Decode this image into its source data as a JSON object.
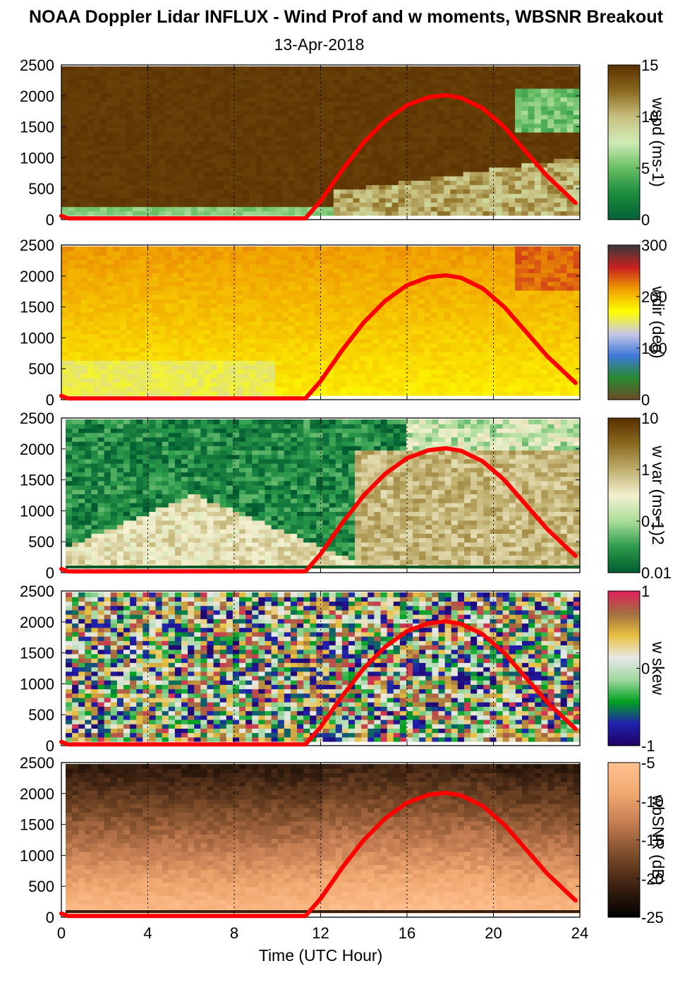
{
  "title": "NOAA Doppler Lidar INFLUX - Wind Prof and w moments, WBSNR Breakout",
  "date": "13-Apr-2018",
  "chart_data": {
    "type": "heatmap",
    "xlabel": "Time (UTC Hour)",
    "x_ticks": [
      "0",
      "4",
      "8",
      "12",
      "16",
      "20",
      "24"
    ],
    "xlim": [
      0,
      24
    ],
    "ylim": [
      0,
      2500
    ],
    "y_ticks": [
      "0",
      "500",
      "1000",
      "1500",
      "2000",
      "2500"
    ],
    "grid": "vertical dotted lines at 4, 8, 12, 16, 20",
    "overlay": {
      "name": "solar curve",
      "color": "#ff0000",
      "x": [
        0,
        0.3,
        11.3,
        12,
        13,
        14,
        15,
        16,
        17,
        17.8,
        18.5,
        19.5,
        20.5,
        21.5,
        22.5,
        23.8
      ],
      "y": [
        60,
        20,
        20,
        300,
        800,
        1250,
        1600,
        1850,
        1980,
        2010,
        1970,
        1800,
        1500,
        1100,
        700,
        270
      ]
    },
    "panels": [
      {
        "id": "wspd",
        "colorbar_label": "wspd (ms-1)",
        "colorbar_ticks": [
          "0",
          "5",
          "10",
          "15"
        ],
        "colors": [
          "#05603a",
          "#1a8a3c",
          "#66bd63",
          "#d0ecb6",
          "#c8c080",
          "#8a6a20",
          "#5a3000"
        ]
      },
      {
        "id": "wdir",
        "colorbar_label": "wdir (deg)",
        "colorbar_ticks": [
          "0",
          "100",
          "200",
          "300"
        ],
        "colors": [
          "#6b4a28",
          "#2a8a30",
          "#3c78d8",
          "#c8c8e8",
          "#ffff00",
          "#f0a000",
          "#c82020",
          "#3a3a3a"
        ]
      },
      {
        "id": "wvar",
        "colorbar_label": "w var (ms-1)2",
        "colorbar_ticks": [
          "0.01",
          "0.1",
          "1",
          "10"
        ],
        "colors": [
          "#005a30",
          "#2a9a4a",
          "#a8dc98",
          "#f4f0d0",
          "#c0b070",
          "#8a6a20",
          "#5a3000"
        ]
      },
      {
        "id": "wskew",
        "colorbar_label": "w skew",
        "colorbar_ticks": [
          "-1",
          "0",
          "1"
        ],
        "colors": [
          "#200060",
          "#2020b0",
          "#00a020",
          "#a0d8a0",
          "#e8e8e8",
          "#e8c040",
          "#a07040",
          "#e0205a"
        ]
      },
      {
        "id": "wbsnr",
        "colorbar_label": "wbSNR (dB)",
        "colorbar_ticks": [
          "-25",
          "-20",
          "-15",
          "-10",
          "-5"
        ],
        "colors": [
          "#000000",
          "#3a2010",
          "#7a4a28",
          "#c07a50",
          "#f0a870",
          "#ffc090"
        ]
      }
    ]
  }
}
